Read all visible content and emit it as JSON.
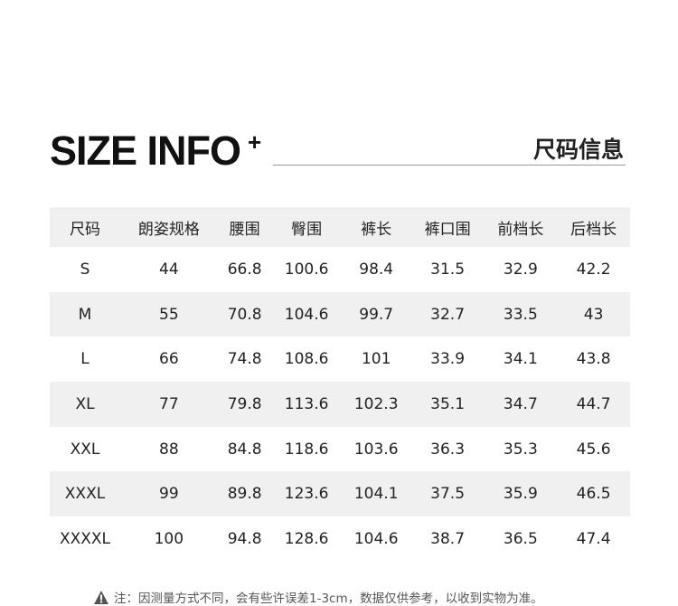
{
  "header": {
    "title": "SIZE INFO",
    "plus": "+",
    "title_cn": "尺码信息"
  },
  "table": {
    "columns": [
      "尺码",
      "朗姿规格",
      "腰围",
      "臀围",
      "裤长",
      "裤口围",
      "前档长",
      "后档长"
    ],
    "rows": [
      [
        "S",
        "44",
        "66.8",
        "100.6",
        "98.4",
        "31.5",
        "32.9",
        "42.2"
      ],
      [
        "M",
        "55",
        "70.8",
        "104.6",
        "99.7",
        "32.7",
        "33.5",
        "43"
      ],
      [
        "L",
        "66",
        "74.8",
        "108.6",
        "101",
        "33.9",
        "34.1",
        "43.8"
      ],
      [
        "XL",
        "77",
        "79.8",
        "113.6",
        "102.3",
        "35.1",
        "34.7",
        "44.7"
      ],
      [
        "XXL",
        "88",
        "84.8",
        "118.6",
        "103.6",
        "36.3",
        "35.3",
        "45.6"
      ],
      [
        "XXXL",
        "99",
        "89.8",
        "123.6",
        "104.1",
        "37.5",
        "35.9",
        "46.5"
      ],
      [
        "XXXXL",
        "100",
        "94.8",
        "128.6",
        "104.6",
        "38.7",
        "36.5",
        "47.4"
      ]
    ]
  },
  "note": {
    "icon": "warning-icon",
    "text": "注：因测量方式不同，会有些许误差1-3cm，数据仅供参考，以收到实物为准。"
  },
  "colors": {
    "header_bg": "#f0f0f0",
    "text": "#222222"
  }
}
